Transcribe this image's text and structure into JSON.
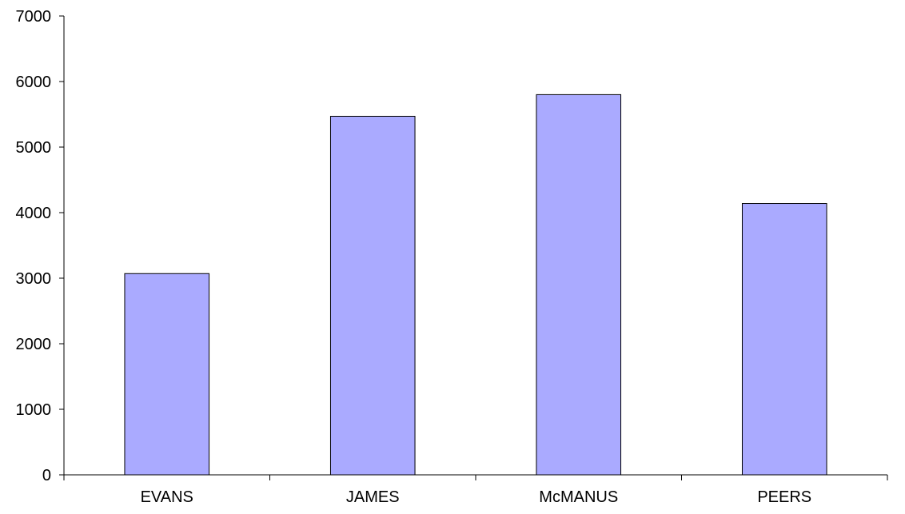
{
  "chart_data": {
    "type": "bar",
    "title": "",
    "xlabel": "",
    "ylabel": "",
    "categories": [
      "EVANS",
      "JAMES",
      "McMANUS",
      "PEERS"
    ],
    "values": [
      3070,
      5470,
      5800,
      4140
    ],
    "ylim": [
      0,
      7000
    ],
    "yticks": [
      0,
      1000,
      2000,
      3000,
      4000,
      5000,
      6000,
      7000
    ],
    "grid": false,
    "legend": "none",
    "bar_color": "#aaaaff",
    "bar_edge_color": "#000000"
  }
}
